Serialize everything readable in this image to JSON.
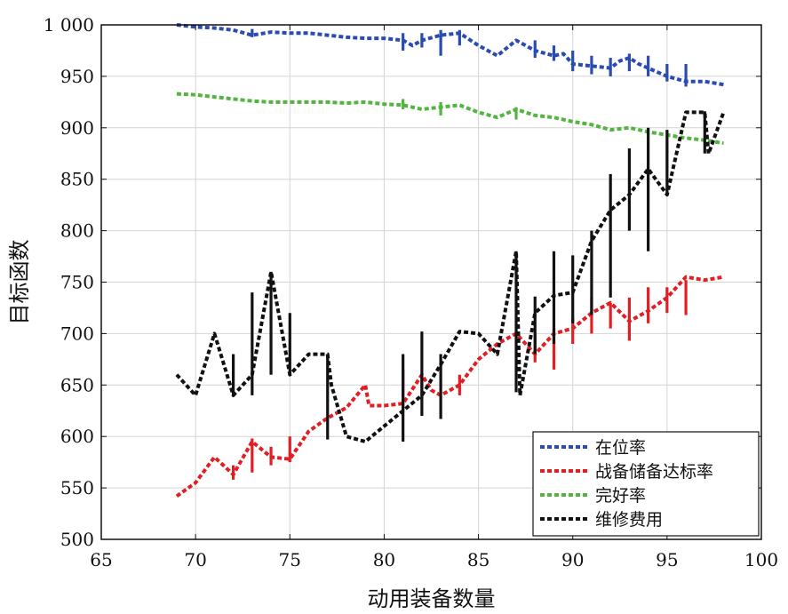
{
  "chart_data": {
    "type": "line",
    "title": "",
    "xlabel": "动用装备数量",
    "ylabel": "目标函数",
    "xlim": [
      65,
      100
    ],
    "ylim": [
      500,
      1000
    ],
    "x_ticks": [
      65,
      70,
      75,
      80,
      85,
      90,
      95,
      100
    ],
    "y_ticks": [
      500,
      550,
      600,
      650,
      700,
      750,
      800,
      850,
      900,
      950,
      1000
    ],
    "y_tick_labels": [
      "500",
      "550",
      "600",
      "650",
      "700",
      "750",
      "800",
      "850",
      "900",
      "950",
      "1 000"
    ],
    "x_tick_labels": [
      "65",
      "70",
      "75",
      "80",
      "85",
      "90",
      "95",
      "100"
    ],
    "grid": true,
    "legend_position": "bottom-right",
    "series": [
      {
        "name": "在位率",
        "color": "#2a4bb0",
        "x": [
          69,
          70,
          71,
          72,
          73,
          74,
          75,
          76,
          77,
          78,
          79,
          80,
          81,
          81.5,
          82,
          83,
          84,
          85,
          86,
          87,
          88,
          89,
          89.5,
          90,
          91,
          92,
          92.5,
          93,
          93.5,
          94,
          95,
          96,
          97,
          98
        ],
        "y": [
          1000,
          998,
          997,
          995,
          990,
          993,
          992,
          992,
          990,
          988,
          987,
          987,
          985,
          980,
          985,
          990,
          992,
          980,
          970,
          985,
          975,
          970,
          972,
          962,
          960,
          958,
          965,
          968,
          962,
          958,
          950,
          945,
          945,
          942
        ],
        "bars": [
          {
            "x": 73,
            "low": 988,
            "high": 996
          },
          {
            "x": 81,
            "low": 975,
            "high": 992
          },
          {
            "x": 82,
            "low": 978,
            "high": 992
          },
          {
            "x": 83,
            "low": 970,
            "high": 995
          },
          {
            "x": 84,
            "low": 980,
            "high": 995
          },
          {
            "x": 88,
            "low": 968,
            "high": 985
          },
          {
            "x": 89,
            "low": 965,
            "high": 980
          },
          {
            "x": 90,
            "low": 955,
            "high": 975
          },
          {
            "x": 91,
            "low": 952,
            "high": 970
          },
          {
            "x": 92,
            "low": 950,
            "high": 968
          },
          {
            "x": 93,
            "low": 955,
            "high": 972
          },
          {
            "x": 94,
            "low": 950,
            "high": 970
          },
          {
            "x": 95,
            "low": 945,
            "high": 962
          },
          {
            "x": 96,
            "low": 940,
            "high": 962
          }
        ]
      },
      {
        "name": "战备储备达标率",
        "color": "#e11e24",
        "x": [
          69,
          70,
          71,
          72,
          73,
          74,
          75,
          76,
          77,
          78,
          79,
          79.2,
          80,
          81,
          82,
          82.5,
          83,
          84,
          85,
          86,
          87,
          88,
          89,
          90,
          91,
          92,
          93,
          94,
          95,
          96,
          97,
          98
        ],
        "y": [
          542,
          555,
          580,
          563,
          595,
          580,
          578,
          605,
          618,
          628,
          650,
          630,
          630,
          632,
          660,
          645,
          640,
          650,
          675,
          690,
          700,
          680,
          700,
          705,
          720,
          730,
          712,
          722,
          735,
          755,
          752,
          755
        ],
        "bars": [
          {
            "x": 72,
            "low": 558,
            "high": 572
          },
          {
            "x": 73,
            "low": 565,
            "high": 598
          },
          {
            "x": 74,
            "low": 572,
            "high": 590
          },
          {
            "x": 75,
            "low": 575,
            "high": 600
          },
          {
            "x": 81,
            "low": 625,
            "high": 665
          },
          {
            "x": 82,
            "low": 635,
            "high": 660
          },
          {
            "x": 84,
            "low": 640,
            "high": 660
          },
          {
            "x": 88,
            "low": 672,
            "high": 700
          },
          {
            "x": 89,
            "low": 665,
            "high": 705
          },
          {
            "x": 90,
            "low": 690,
            "high": 715
          },
          {
            "x": 91,
            "low": 700,
            "high": 735
          },
          {
            "x": 92,
            "low": 705,
            "high": 730
          },
          {
            "x": 93,
            "low": 693,
            "high": 735
          },
          {
            "x": 94,
            "low": 710,
            "high": 745
          },
          {
            "x": 95,
            "low": 720,
            "high": 745
          },
          {
            "x": 96,
            "low": 718,
            "high": 752
          }
        ]
      },
      {
        "name": "完好率",
        "color": "#52b540",
        "x": [
          69,
          70,
          71,
          72,
          73,
          74,
          75,
          76,
          77,
          78,
          79,
          80,
          81,
          82,
          83,
          84,
          85,
          86,
          87,
          88,
          89,
          90,
          91,
          92,
          93,
          94,
          95,
          96,
          97,
          98
        ],
        "y": [
          933,
          932,
          930,
          928,
          926,
          925,
          925,
          925,
          925,
          924,
          925,
          923,
          922,
          918,
          920,
          922,
          915,
          910,
          918,
          912,
          910,
          906,
          903,
          898,
          900,
          896,
          893,
          890,
          888,
          885
        ],
        "bars": [
          {
            "x": 81,
            "low": 918,
            "high": 928
          },
          {
            "x": 83,
            "low": 912,
            "high": 925
          },
          {
            "x": 87,
            "low": 908,
            "high": 920
          }
        ]
      },
      {
        "name": "维修费用",
        "color": "#111111",
        "x": [
          69,
          70,
          71,
          72,
          73,
          74,
          75,
          76,
          77,
          77.2,
          78,
          79,
          80,
          81,
          82,
          83,
          84,
          85,
          86,
          87,
          87.2,
          88,
          89,
          90,
          91,
          92,
          93,
          94,
          95,
          96,
          97,
          97.2,
          98
        ],
        "y": [
          660,
          640,
          700,
          640,
          660,
          760,
          660,
          680,
          680,
          650,
          600,
          595,
          610,
          625,
          640,
          670,
          702,
          700,
          680,
          780,
          640,
          720,
          737,
          740,
          790,
          820,
          835,
          860,
          835,
          915,
          915,
          875,
          915
        ],
        "bars": [
          {
            "x": 72,
            "low": 640,
            "high": 680
          },
          {
            "x": 73,
            "low": 640,
            "high": 740
          },
          {
            "x": 74,
            "low": 660,
            "high": 760
          },
          {
            "x": 75,
            "low": 660,
            "high": 720
          },
          {
            "x": 77,
            "low": 597,
            "high": 680
          },
          {
            "x": 81,
            "low": 595,
            "high": 680
          },
          {
            "x": 82,
            "low": 620,
            "high": 702
          },
          {
            "x": 83,
            "low": 617,
            "high": 680
          },
          {
            "x": 87,
            "low": 643,
            "high": 780
          },
          {
            "x": 88,
            "low": 680,
            "high": 736
          },
          {
            "x": 89,
            "low": 690,
            "high": 780
          },
          {
            "x": 90,
            "low": 710,
            "high": 776
          },
          {
            "x": 91,
            "low": 718,
            "high": 800
          },
          {
            "x": 92,
            "low": 735,
            "high": 855
          },
          {
            "x": 93,
            "low": 800,
            "high": 880
          },
          {
            "x": 94,
            "low": 780,
            "high": 900
          },
          {
            "x": 95,
            "low": 835,
            "high": 898
          },
          {
            "x": 97,
            "low": 875,
            "high": 916
          }
        ]
      }
    ]
  }
}
